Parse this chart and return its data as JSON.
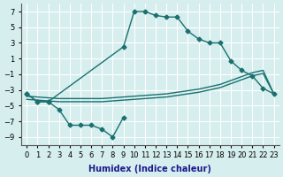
{
  "xlabel": "Humidex (Indice chaleur)",
  "bg_color": "#d6eeee",
  "grid_color": "#ffffff",
  "line_color": "#1a7070",
  "xlim": [
    -0.5,
    23.5
  ],
  "ylim": [
    -10,
    8
  ],
  "xticks": [
    0,
    1,
    2,
    3,
    4,
    5,
    6,
    7,
    8,
    9,
    10,
    11,
    12,
    13,
    14,
    15,
    16,
    17,
    18,
    19,
    20,
    21,
    22,
    23
  ],
  "yticks": [
    -9,
    -7,
    -5,
    -3,
    -1,
    1,
    3,
    5,
    7
  ],
  "curve_upper_x": [
    0,
    1,
    2,
    9,
    10,
    11,
    12,
    13,
    14,
    15,
    16,
    17,
    18,
    19,
    20,
    21,
    22,
    23
  ],
  "curve_upper_y": [
    -3.5,
    -4.5,
    -4.5,
    2.5,
    7.0,
    7.0,
    6.5,
    6.3,
    6.3,
    4.5,
    3.5,
    3.0,
    3.0,
    0.7,
    -0.5,
    -1.2,
    -2.8,
    -3.5
  ],
  "curve_lower_x": [
    0,
    1,
    2,
    3,
    4,
    5,
    6,
    7,
    8,
    9
  ],
  "curve_lower_y": [
    -3.5,
    -4.5,
    -4.5,
    -5.5,
    -7.5,
    -7.5,
    -7.5,
    -8.0,
    -9.0,
    -6.5
  ],
  "diag1_x": [
    0,
    1,
    2,
    3,
    4,
    5,
    6,
    7,
    8,
    9,
    10,
    11,
    12,
    13,
    14,
    15,
    16,
    17,
    18,
    19,
    20,
    21,
    22,
    23
  ],
  "diag1_y": [
    -3.8,
    -3.9,
    -4.0,
    -4.1,
    -4.1,
    -4.1,
    -4.1,
    -4.1,
    -4.0,
    -3.9,
    -3.8,
    -3.7,
    -3.6,
    -3.5,
    -3.3,
    -3.1,
    -2.9,
    -2.6,
    -2.3,
    -1.8,
    -1.3,
    -0.8,
    -0.5,
    -3.5
  ],
  "diag2_x": [
    0,
    1,
    2,
    3,
    4,
    5,
    6,
    7,
    8,
    9,
    10,
    11,
    12,
    13,
    14,
    15,
    16,
    17,
    18,
    19,
    20,
    21,
    22,
    23
  ],
  "diag2_y": [
    -4.2,
    -4.3,
    -4.4,
    -4.5,
    -4.5,
    -4.5,
    -4.5,
    -4.5,
    -4.4,
    -4.3,
    -4.2,
    -4.1,
    -4.0,
    -3.9,
    -3.7,
    -3.5,
    -3.3,
    -3.0,
    -2.7,
    -2.2,
    -1.7,
    -1.2,
    -0.9,
    -3.5
  ]
}
